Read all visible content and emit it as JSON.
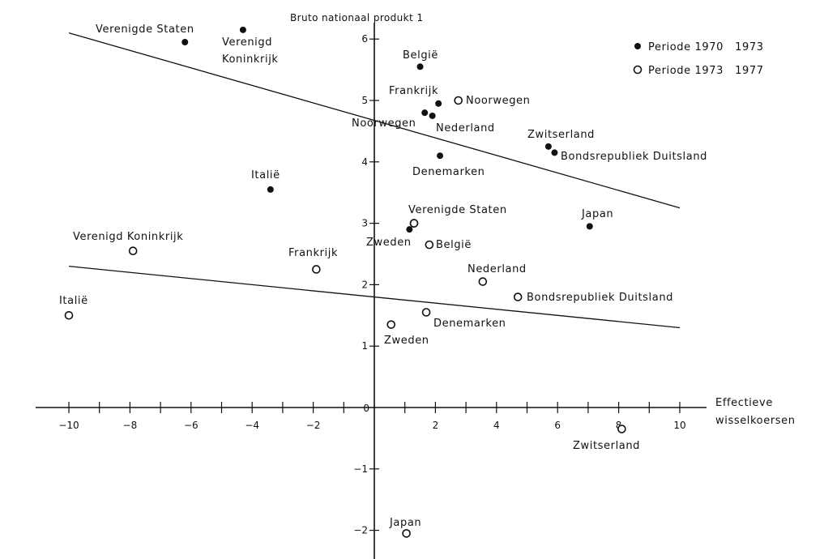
{
  "chart_data": {
    "type": "scatter",
    "title": "Bruto nationaal produkt 1",
    "xlabel": [
      "Effectieve",
      "wisselkoersen"
    ],
    "xlim": [
      -11,
      11.5
    ],
    "ylim": [
      -2.8,
      6.4
    ],
    "xticks": [
      -10,
      -8,
      -6,
      -4,
      -2,
      0,
      2,
      4,
      6,
      8,
      10
    ],
    "yticks": [
      -2,
      -1,
      0,
      1,
      2,
      3,
      4,
      5,
      6
    ],
    "xtick_labels": [
      "−10",
      "−8",
      "−6",
      "−4",
      "−2",
      "0",
      "2",
      "4",
      "6",
      "8",
      "10"
    ],
    "ytick_labels": [
      "−2",
      "−1",
      "0",
      "1",
      "2",
      "3",
      "4",
      "5",
      "6"
    ],
    "legend": {
      "position": "top-right",
      "entries": [
        {
          "marker": "filled",
          "label": "Periode 1970   1973"
        },
        {
          "marker": "open",
          "label": "Periode 1973   1977"
        }
      ]
    },
    "series": [
      {
        "name": "Periode 1970   1973",
        "marker": "filled",
        "points": [
          {
            "label": "Verenigde Staten",
            "x": -6.2,
            "y": 5.95
          },
          {
            "label": "Verenigd Koninkrijk",
            "x": -4.3,
            "y": 6.15
          },
          {
            "label": "België",
            "x": 1.5,
            "y": 5.55
          },
          {
            "label": "Frankrijk",
            "x": 1.65,
            "y": 4.8
          },
          {
            "label": "Nederland",
            "x": 1.9,
            "y": 4.75
          },
          {
            "label": "Noorwegen",
            "x": 2.1,
            "y": 4.95
          },
          {
            "label": "Denemarken",
            "x": 2.15,
            "y": 4.1
          },
          {
            "label": "Zwitserland",
            "x": 5.7,
            "y": 4.25
          },
          {
            "label": "Bondsrepubliek Duitsland",
            "x": 5.9,
            "y": 4.15
          },
          {
            "label": "Italië",
            "x": -3.4,
            "y": 3.55
          },
          {
            "label": "Zweden",
            "x": 1.15,
            "y": 2.9
          },
          {
            "label": "Japan",
            "x": 7.05,
            "y": 2.95
          }
        ]
      },
      {
        "name": "Periode 1973   1977",
        "marker": "open",
        "points": [
          {
            "label": "Noorwegen",
            "x": 2.75,
            "y": 5.0
          },
          {
            "label": "Verenigde Staten",
            "x": 1.3,
            "y": 3.0
          },
          {
            "label": "Zweden",
            "x": 1.3,
            "y": 3.0
          },
          {
            "label": "België",
            "x": 1.8,
            "y": 2.65
          },
          {
            "label": "Verenigd Koninkrijk",
            "x": -7.9,
            "y": 2.55
          },
          {
            "label": "Frankrijk",
            "x": -1.9,
            "y": 2.25
          },
          {
            "label": "Nederland",
            "x": 3.55,
            "y": 2.05
          },
          {
            "label": "Bondsrepubliek Duitsland",
            "x": 4.7,
            "y": 1.8
          },
          {
            "label": "Italië",
            "x": -10.0,
            "y": 1.5
          },
          {
            "label": "Denemarken",
            "x": 1.7,
            "y": 1.55
          },
          {
            "label": "Zweden",
            "x": 0.55,
            "y": 1.35
          },
          {
            "label": "Zwitserland",
            "x": 8.1,
            "y": -0.35
          },
          {
            "label": "Japan",
            "x": 1.05,
            "y": -2.05
          }
        ]
      }
    ],
    "trend_lines": [
      {
        "period": "1970-1973",
        "x": [
          -10,
          10
        ],
        "y": [
          6.1,
          3.25
        ]
      },
      {
        "period": "1973-1977",
        "x": [
          -10,
          10
        ],
        "y": [
          2.3,
          1.3
        ]
      }
    ]
  }
}
